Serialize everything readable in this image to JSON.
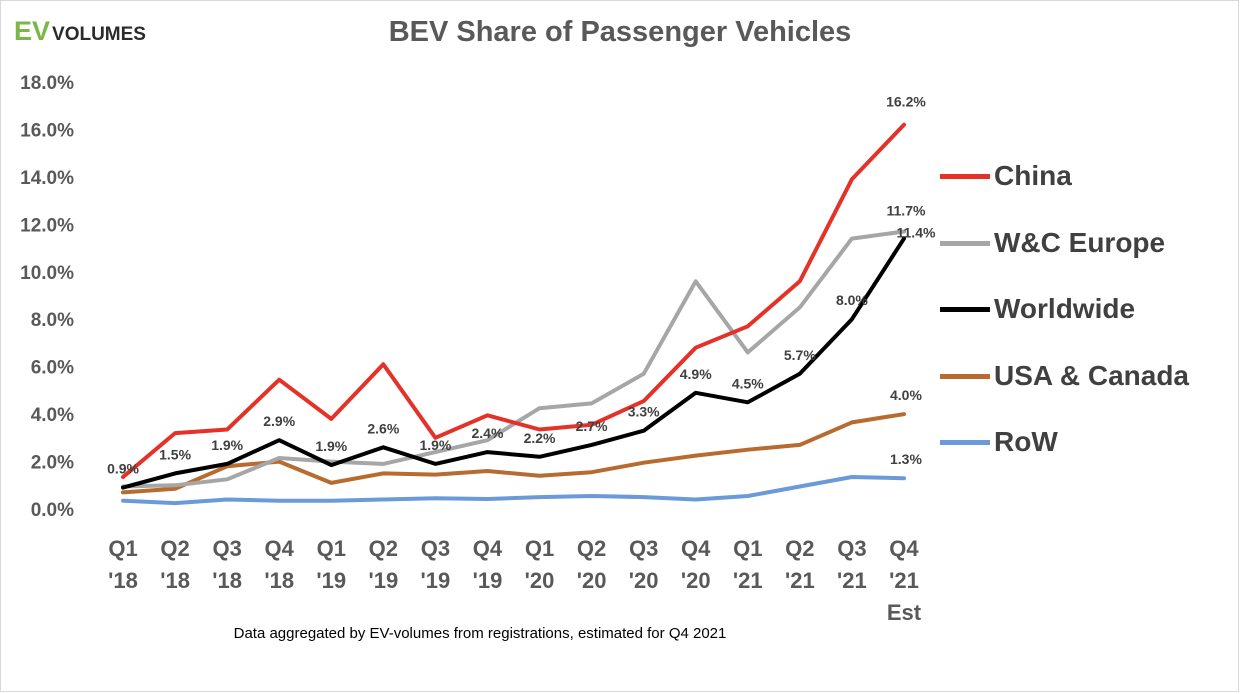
{
  "logo": {
    "ev": "EV",
    "volumes": "VOLUMES"
  },
  "chart_data": {
    "type": "line",
    "title": "BEV Share of Passenger Vehicles",
    "categories": [
      [
        "Q1",
        "'18"
      ],
      [
        "Q2",
        "'18"
      ],
      [
        "Q3",
        "'18"
      ],
      [
        "Q4",
        "'18"
      ],
      [
        "Q1",
        "'19"
      ],
      [
        "Q2",
        "'19"
      ],
      [
        "Q3",
        "'19"
      ],
      [
        "Q4",
        "'19"
      ],
      [
        "Q1",
        "'20"
      ],
      [
        "Q2",
        "'20"
      ],
      [
        "Q3",
        "'20"
      ],
      [
        "Q4",
        "'20"
      ],
      [
        "Q1",
        "'21"
      ],
      [
        "Q2",
        "'21"
      ],
      [
        "Q3",
        "'21"
      ],
      [
        "Q4",
        "'21",
        "Est"
      ]
    ],
    "ylim": [
      0,
      18
    ],
    "yticks": [
      "0.0%",
      "2.0%",
      "4.0%",
      "6.0%",
      "8.0%",
      "10.0%",
      "12.0%",
      "14.0%",
      "16.0%",
      "18.0%"
    ],
    "grid": false,
    "legend_position": "right",
    "series": [
      {
        "name": "RoW",
        "color": "#6a9bd8",
        "values": [
          0.35,
          0.25,
          0.4,
          0.35,
          0.35,
          0.4,
          0.45,
          0.42,
          0.5,
          0.55,
          0.5,
          0.4,
          0.55,
          0.95,
          1.35,
          1.3
        ],
        "labels": [
          null,
          null,
          null,
          null,
          null,
          null,
          null,
          null,
          null,
          null,
          null,
          null,
          null,
          null,
          null,
          "1.3%"
        ]
      },
      {
        "name": "USA & Canada",
        "color": "#b86b2e",
        "values": [
          0.7,
          0.85,
          1.8,
          2.0,
          1.1,
          1.5,
          1.45,
          1.6,
          1.4,
          1.55,
          1.95,
          2.25,
          2.5,
          2.7,
          3.65,
          4.0
        ],
        "labels": [
          null,
          null,
          null,
          null,
          null,
          null,
          null,
          null,
          null,
          null,
          null,
          null,
          null,
          null,
          null,
          "4.0%"
        ]
      },
      {
        "name": "W&C Europe",
        "color": "#a6a6a6",
        "values": [
          0.95,
          1.0,
          1.25,
          2.15,
          2.0,
          1.9,
          2.4,
          2.9,
          4.25,
          4.45,
          5.7,
          9.6,
          6.6,
          8.5,
          11.4,
          11.7
        ],
        "labels": [
          null,
          null,
          null,
          null,
          null,
          null,
          null,
          null,
          null,
          null,
          null,
          null,
          null,
          null,
          null,
          "11.7%"
        ]
      },
      {
        "name": "China",
        "color": "#e53228",
        "values": [
          1.35,
          3.2,
          3.35,
          5.45,
          3.8,
          6.1,
          3.0,
          3.95,
          3.35,
          3.55,
          4.55,
          6.8,
          7.7,
          9.6,
          13.9,
          16.2
        ],
        "labels": [
          null,
          null,
          null,
          null,
          null,
          null,
          null,
          null,
          null,
          null,
          null,
          null,
          null,
          null,
          null,
          "16.2%"
        ]
      },
      {
        "name": "Worldwide",
        "color": "#000000",
        "values": [
          0.9,
          1.5,
          1.9,
          2.9,
          1.85,
          2.6,
          1.9,
          2.4,
          2.2,
          2.7,
          3.3,
          4.9,
          4.5,
          5.7,
          8.0,
          11.4
        ],
        "labels": [
          "0.9%",
          "1.5%",
          "1.9%",
          "2.9%",
          "1.9%",
          "2.6%",
          "1.9%",
          "2.4%",
          "2.2%",
          "2.7%",
          "3.3%",
          "4.9%",
          "4.5%",
          "5.7%",
          "8.0%",
          "11.4%"
        ]
      }
    ],
    "legend": [
      "China",
      "W&C Europe",
      "Worldwide",
      "USA & Canada",
      "RoW"
    ]
  },
  "legend_colors": {
    "China": "#e53228",
    "W&C Europe": "#a6a6a6",
    "Worldwide": "#000000",
    "USA & Canada": "#b86b2e",
    "RoW": "#6a9bd8"
  },
  "footnote": "Data aggregated by EV-volumes from registrations, estimated for Q4 2021"
}
